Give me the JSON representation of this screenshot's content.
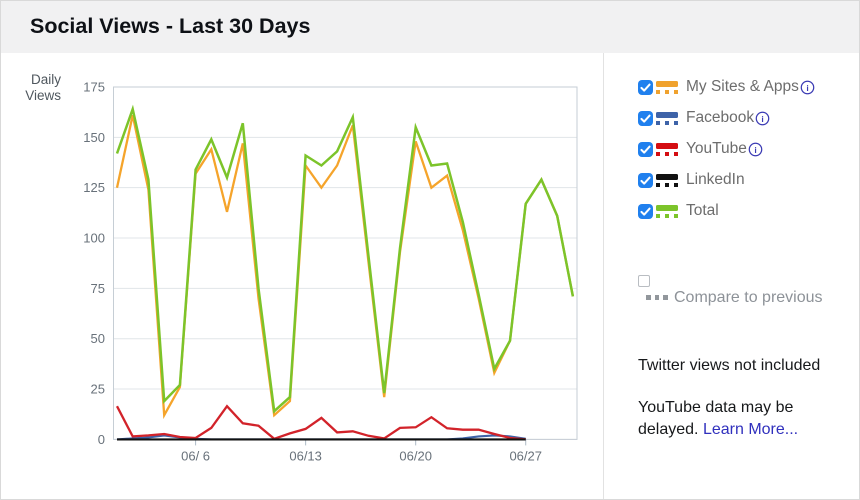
{
  "header": {
    "title": "Social Views - Last 30 Days"
  },
  "chart": {
    "axis_title_line1": "Daily",
    "axis_title_line2": "Views"
  },
  "chart_data": {
    "type": "line",
    "title": "Social Views - Last 30 Days",
    "ylabel": "Daily Views",
    "ylim": [
      0,
      175
    ],
    "y_ticks": [
      0,
      25,
      50,
      75,
      100,
      125,
      150,
      175
    ],
    "x_tick_labels": [
      "06/ 6",
      "06/13",
      "06/20",
      "06/27"
    ],
    "x_tick_indices": [
      5,
      12,
      19,
      26
    ],
    "n_points": 30,
    "grid": "horizontal",
    "legend_position": "right",
    "series": [
      {
        "name": "My Sites & Apps",
        "color": "#F5A42B",
        "values": [
          125,
          161,
          124,
          12,
          26,
          132,
          144,
          113,
          147,
          70,
          12,
          19,
          136,
          125,
          136,
          156,
          88,
          21,
          93,
          148,
          125,
          131,
          104,
          70,
          33,
          49,
          117,
          129,
          111,
          71
        ]
      },
      {
        "name": "Facebook",
        "color": "#3E63A8",
        "values": [
          0,
          0.5,
          1,
          2,
          1,
          0.3,
          0,
          0,
          0,
          0,
          0,
          0,
          0,
          0,
          0,
          0,
          0,
          0,
          0,
          0,
          0,
          0,
          0.5,
          1.5,
          2,
          1.5,
          0.3
        ]
      },
      {
        "name": "YouTube",
        "color": "#D2232A",
        "values": [
          16.5,
          1.5,
          2,
          2.7,
          1.2,
          0.7,
          5.7,
          16.5,
          8,
          6.8,
          0.3,
          3,
          5.2,
          10.7,
          3.5,
          4,
          1.8,
          0.5,
          5.7,
          6,
          11,
          5.5,
          4.8,
          4.8,
          2.7,
          0.7,
          0
        ]
      },
      {
        "name": "LinkedIn",
        "color": "#111111",
        "values": [
          0,
          0,
          0,
          0,
          0,
          0,
          0,
          0,
          0,
          0,
          0,
          0,
          0,
          0,
          0,
          0,
          0,
          0,
          0,
          0,
          0,
          0,
          0,
          0,
          0,
          0,
          0
        ]
      },
      {
        "name": "Total",
        "color": "#7CC42A",
        "values": [
          142,
          164,
          129,
          19,
          27,
          134,
          149,
          130,
          157,
          75,
          14,
          21,
          141,
          136,
          143,
          160,
          91,
          23,
          95,
          155,
          136,
          137,
          108,
          72,
          35,
          49,
          117,
          129,
          111,
          71
        ]
      }
    ]
  },
  "legend": {
    "checkbox_color": "#2080EE",
    "info_icon_color": "#3B3BB4",
    "items": [
      {
        "label": "My Sites & Apps",
        "color": "#F0A22E",
        "checked": true,
        "info": true
      },
      {
        "label": "Facebook",
        "color": "#3E63A8",
        "checked": true,
        "info": true
      },
      {
        "label": "YouTube",
        "color": "#D40D12",
        "checked": true,
        "info": true
      },
      {
        "label": "LinkedIn",
        "color": "#111111",
        "checked": true,
        "info": false
      },
      {
        "label": "Total",
        "color": "#7CC42A",
        "checked": true,
        "info": false
      }
    ],
    "compare": {
      "label": "Compare to previous",
      "checked": false
    }
  },
  "notes": {
    "twitter": "Twitter views not included",
    "youtube_line1": "YouTube data may be",
    "youtube_line2": "delayed.",
    "link": "Learn More..."
  }
}
